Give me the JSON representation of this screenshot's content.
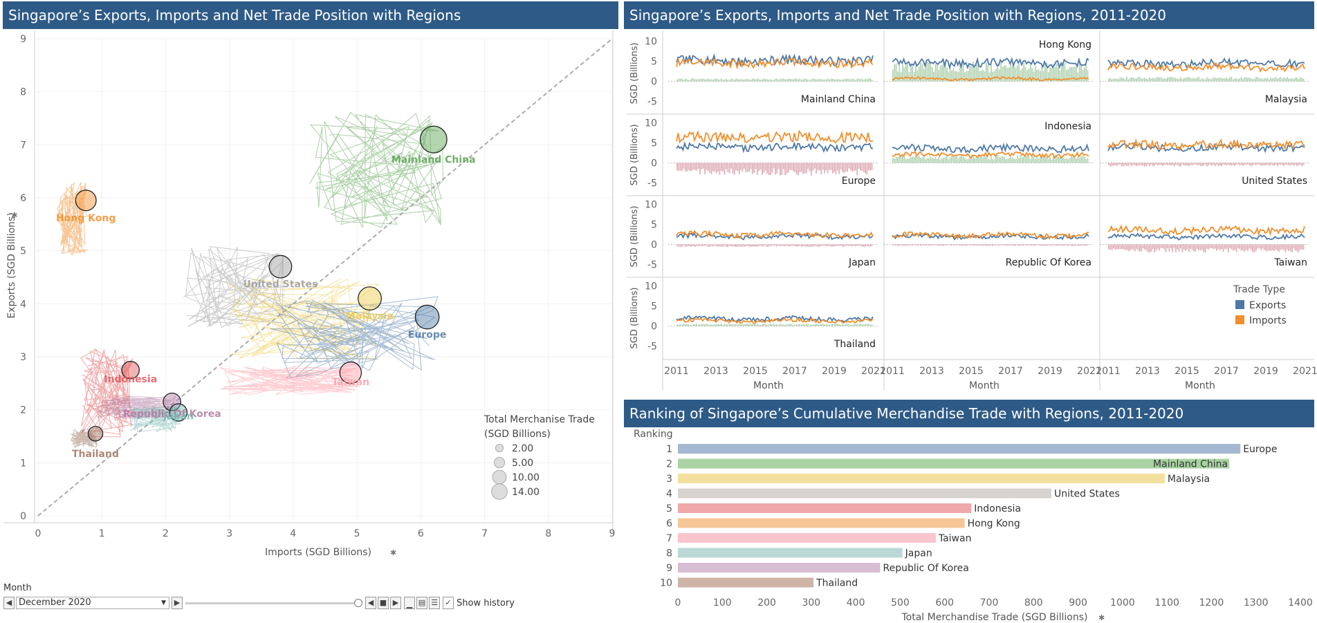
{
  "left_title": "Singapore’s  Exports, Imports and Net Trade Position with Regions",
  "right_title": "Singapore’s  Exports, Imports and Net Trade Position with Regions, 2011-2020",
  "bottom_title": "Ranking of Singapore’s Cumulative Merchandise Trade with Regions, 2011-2020",
  "colors": {
    "banner": "#2e5a87",
    "exports": "#4e79a7",
    "imports": "#f28e2b",
    "positive_net": "#a0c8a0",
    "negative_net": "#d89aa8"
  },
  "controls": {
    "month_label": "Month",
    "month_value": "December 2020",
    "show_history_label": "Show history",
    "show_history_checked": true
  },
  "chart_data": [
    {
      "type": "scatter",
      "title": "Singapore’s  Exports, Imports and Net Trade Position with Regions",
      "xlabel": "Imports (SGD Billions)",
      "ylabel": "Exports (SGD Billions)",
      "xlim": [
        0,
        9
      ],
      "ylim": [
        0,
        9
      ],
      "xticks": [
        "0",
        "1",
        "2",
        "3",
        "4",
        "5",
        "6",
        "7",
        "8",
        "9"
      ],
      "yticks": [
        "0",
        "1",
        "2",
        "3",
        "4",
        "5",
        "6",
        "7",
        "8",
        "9"
      ],
      "reference_line": "y = x (dashed)",
      "points": [
        {
          "name": "Mainland China",
          "x": 6.2,
          "y": 7.1,
          "total": 13.3,
          "color": "#59a14f"
        },
        {
          "name": "Hong Kong",
          "x": 0.75,
          "y": 5.95,
          "total": 6.7,
          "color": "#f28e2b"
        },
        {
          "name": "United States",
          "x": 3.8,
          "y": 4.7,
          "total": 8.5,
          "color": "#9c9c9c"
        },
        {
          "name": "Malaysia",
          "x": 5.2,
          "y": 4.1,
          "total": 9.3,
          "color": "#edc948"
        },
        {
          "name": "Europe",
          "x": 6.1,
          "y": 3.75,
          "total": 9.85,
          "color": "#4e79a7"
        },
        {
          "name": "Indonesia",
          "x": 1.45,
          "y": 2.75,
          "total": 4.2,
          "color": "#e15759"
        },
        {
          "name": "Taiwan",
          "x": 4.9,
          "y": 2.7,
          "total": 7.6,
          "color": "#ff9da7"
        },
        {
          "name": "Republic Of Korea",
          "x": 2.1,
          "y": 2.15,
          "total": 4.25,
          "color": "#b07aa1"
        },
        {
          "name": "Japan",
          "x": 2.2,
          "y": 1.95,
          "total": 4.15,
          "color": "#76b7b2"
        },
        {
          "name": "Thailand",
          "x": 0.9,
          "y": 1.55,
          "total": 2.45,
          "color": "#9c755f"
        }
      ],
      "size_legend": {
        "title_line1": "Total Merchanise Trade",
        "title_line2": "(SGD Billions)",
        "items": [
          "2.00",
          "5.00",
          "10.00",
          "14.00"
        ],
        "values": [
          2,
          5,
          10,
          14
        ]
      }
    },
    {
      "type": "line",
      "title": "Singapore’s  Exports, Imports and Net Trade Position with Regions, 2011-2020",
      "ylabel": "SGD (Billions)",
      "xlabel": "Month",
      "ylim": [
        -8,
        12
      ],
      "yticks": [
        "10",
        "5",
        "0",
        "-5"
      ],
      "xticks": [
        "2011",
        "2013",
        "2015",
        "2017",
        "2019",
        "2021"
      ],
      "legend": {
        "title": "Trade Type",
        "items": [
          "Exports",
          "Imports"
        ]
      },
      "panels": [
        {
          "name": "Mainland China",
          "exports": 5.2,
          "imports": 4.6
        },
        {
          "name": "Hong Kong",
          "exports": 4.6,
          "imports": 0.6
        },
        {
          "name": "Malaysia",
          "exports": 4.4,
          "imports": 3.5
        },
        {
          "name": "Europe",
          "exports": 3.9,
          "imports": 6.4
        },
        {
          "name": "Indonesia",
          "exports": 3.6,
          "imports": 2.0
        },
        {
          "name": "United States",
          "exports": 3.8,
          "imports": 4.5
        },
        {
          "name": "Japan",
          "exports": 2.0,
          "imports": 2.5
        },
        {
          "name": "Republic Of Korea",
          "exports": 2.0,
          "imports": 2.3
        },
        {
          "name": "Taiwan",
          "exports": 2.0,
          "imports": 3.6
        },
        {
          "name": "Thailand",
          "exports": 1.8,
          "imports": 1.3
        }
      ]
    },
    {
      "type": "bar",
      "title": "Ranking of Singapore’s Cumulative Merchandise Trade with Regions, 2011-2020",
      "xlabel": "Total Merchandise Trade (SGD Billions)",
      "ylabel": "Ranking",
      "xlim": [
        0,
        1400
      ],
      "xticks": [
        "0",
        "100",
        "200",
        "300",
        "400",
        "500",
        "600",
        "700",
        "800",
        "900",
        "1000",
        "1100",
        "1200",
        "1300",
        "1400"
      ],
      "ranks": [
        "1",
        "2",
        "3",
        "4",
        "5",
        "6",
        "7",
        "8",
        "9",
        "10"
      ],
      "categories": [
        "Europe",
        "Mainland China",
        "Malaysia",
        "United States",
        "Indonesia",
        "Hong Kong",
        "Taiwan",
        "Japan",
        "Republic Of Korea",
        "Thailand"
      ],
      "values": [
        1265,
        1240,
        1095,
        840,
        660,
        645,
        580,
        505,
        455,
        305
      ],
      "colors": [
        "#a5b8d1",
        "#a9d3a2",
        "#f3e09e",
        "#d8d3d0",
        "#f0a8ab",
        "#f7c697",
        "#fbc5cd",
        "#b9d8d6",
        "#d9bdd3",
        "#cdb4a7"
      ]
    }
  ]
}
